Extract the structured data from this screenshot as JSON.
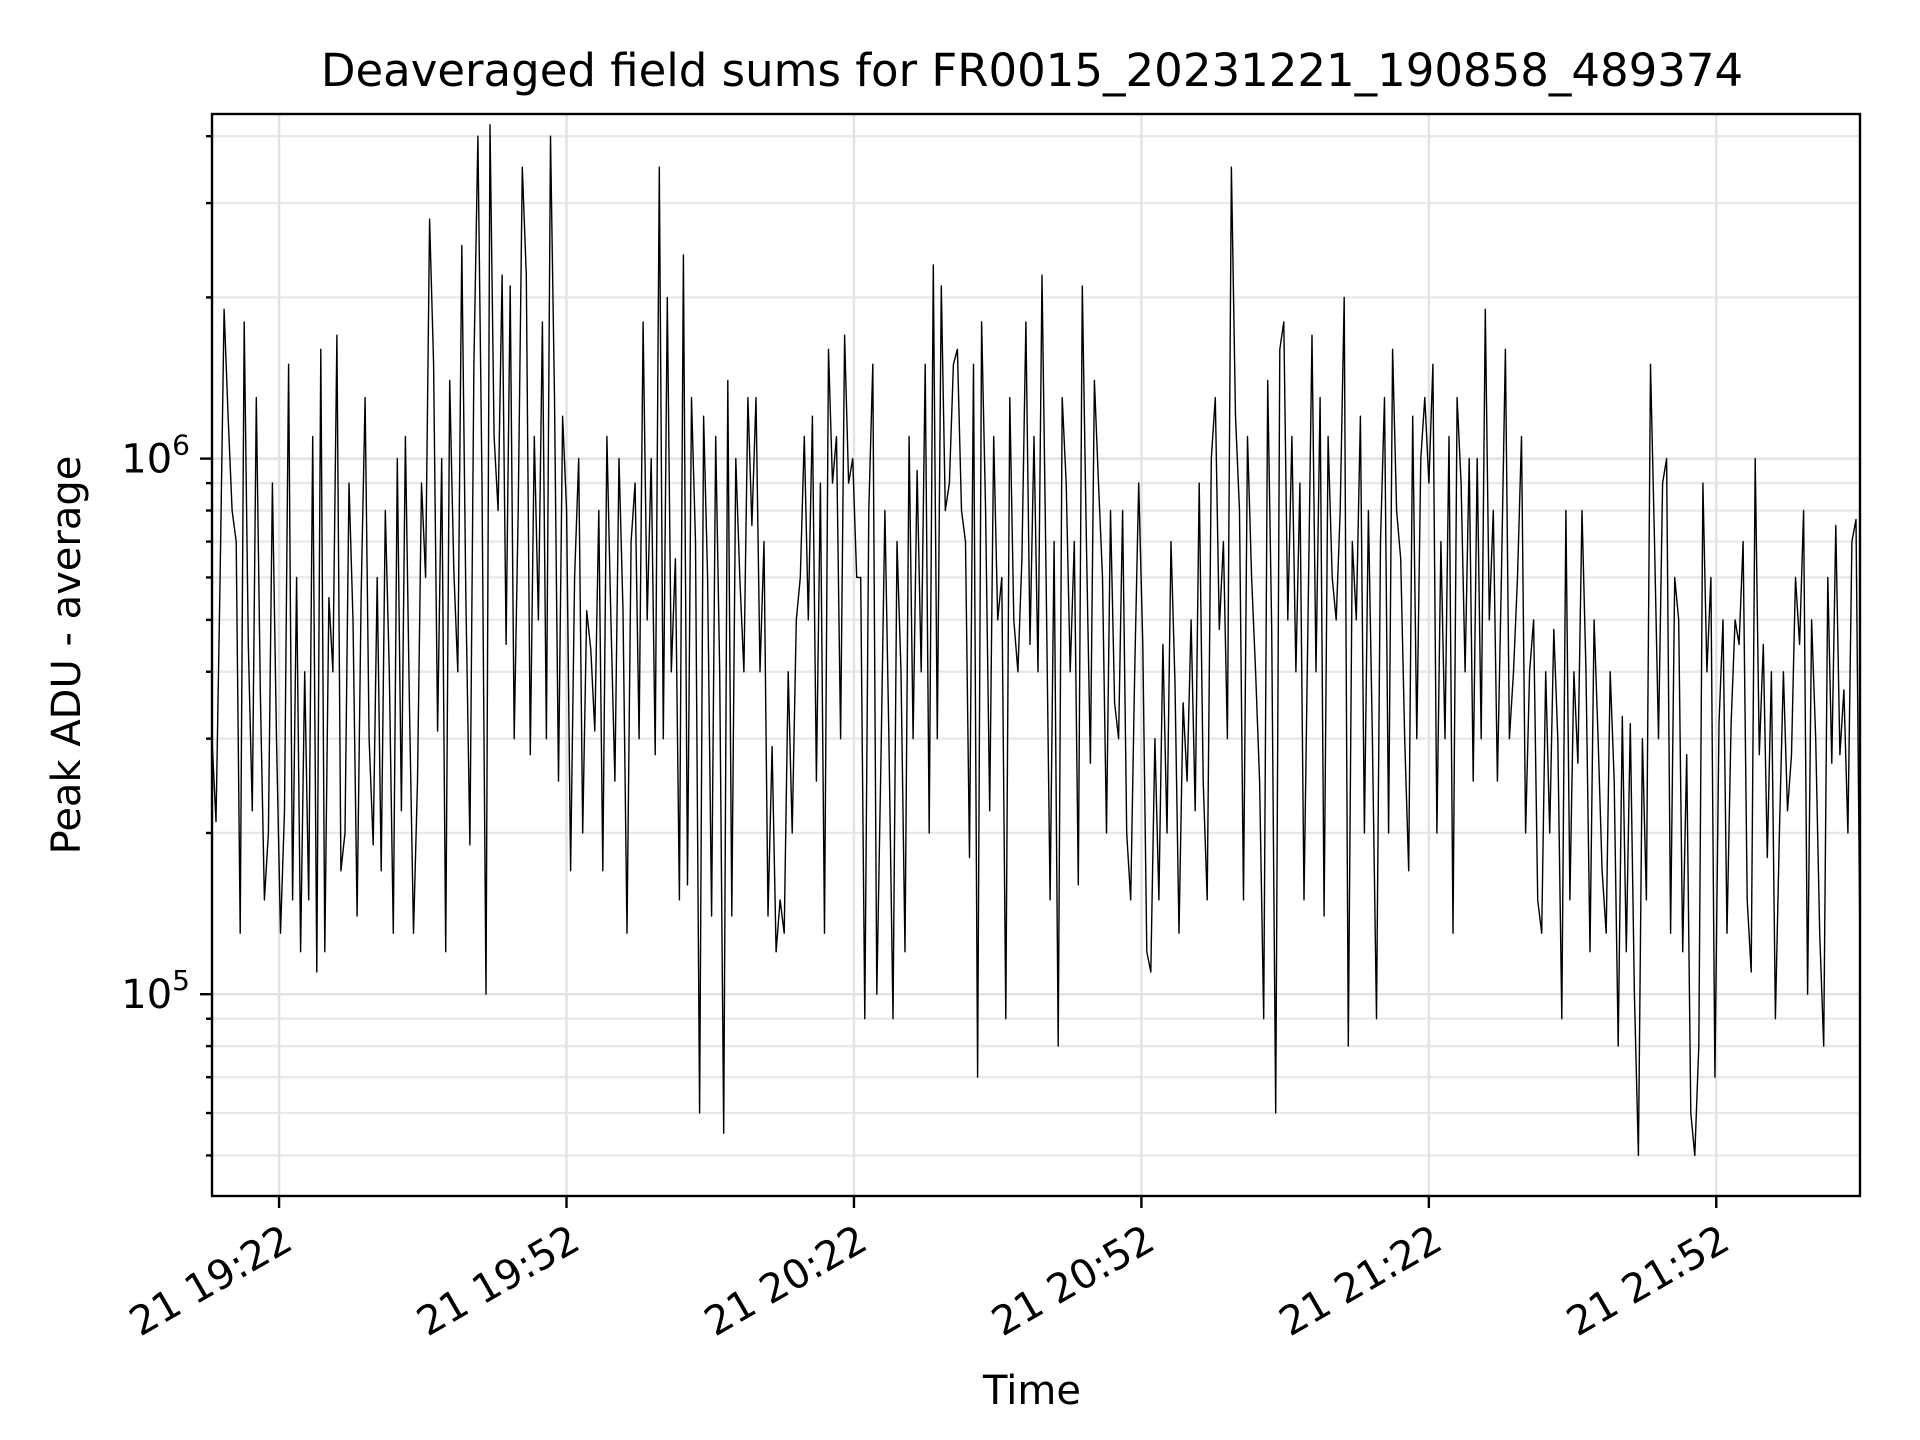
{
  "chart_data": {
    "type": "line",
    "title": "Deaveraged field sums for FR0015_20231221_190858_489374",
    "xlabel": "Time",
    "ylabel": "Peak ADU - average",
    "yscale": "log",
    "ylim": [
      42000,
      4400000
    ],
    "xlim": [
      "2023-12-21 19:15:00",
      "2023-12-21 22:07:00"
    ],
    "x_tick_labels": [
      "21 19:22",
      "21 19:52",
      "21 20:22",
      "21 20:52",
      "21 21:22",
      "21 21:52"
    ],
    "y_tick_labels": [
      {
        "base": "10",
        "exp": "5",
        "value": 100000
      },
      {
        "base": "10",
        "exp": "6",
        "value": 1000000
      }
    ],
    "grid": true,
    "series": [
      {
        "color": "#000000",
        "x_start": "2023-12-21 19:15:00",
        "x_end": "2023-12-21 22:07:00",
        "values": [
          300000,
          210000,
          600000,
          1900000,
          1200000,
          800000,
          700000,
          130000,
          1800000,
          450000,
          220000,
          1300000,
          360000,
          150000,
          200000,
          900000,
          300000,
          130000,
          220000,
          1500000,
          150000,
          600000,
          120000,
          400000,
          150000,
          1100000,
          110000,
          1600000,
          120000,
          550000,
          400000,
          1700000,
          170000,
          200000,
          900000,
          500000,
          140000,
          550000,
          1300000,
          300000,
          190000,
          600000,
          170000,
          800000,
          400000,
          130000,
          1000000,
          220000,
          1100000,
          350000,
          130000,
          250000,
          900000,
          600000,
          2800000,
          1500000,
          310000,
          1000000,
          120000,
          1400000,
          620000,
          400000,
          2500000,
          560000,
          190000,
          1500000,
          4000000,
          900000,
          100000,
          4200000,
          1100000,
          800000,
          2200000,
          450000,
          2100000,
          300000,
          800000,
          3500000,
          2200000,
          280000,
          1100000,
          500000,
          1800000,
          300000,
          4000000,
          1300000,
          250000,
          1200000,
          800000,
          170000,
          600000,
          1000000,
          200000,
          520000,
          440000,
          310000,
          800000,
          170000,
          1100000,
          500000,
          250000,
          1000000,
          520000,
          130000,
          700000,
          900000,
          300000,
          1800000,
          500000,
          1000000,
          280000,
          3500000,
          300000,
          2000000,
          400000,
          650000,
          150000,
          2400000,
          160000,
          1300000,
          700000,
          60000,
          1200000,
          600000,
          140000,
          1100000,
          400000,
          55000,
          1400000,
          140000,
          1000000,
          600000,
          400000,
          1300000,
          750000,
          1300000,
          400000,
          700000,
          140000,
          290000,
          120000,
          150000,
          130000,
          400000,
          200000,
          500000,
          600000,
          1100000,
          500000,
          1200000,
          250000,
          900000,
          130000,
          1600000,
          900000,
          1100000,
          300000,
          1700000,
          900000,
          1000000,
          600000,
          600000,
          90000,
          800000,
          1500000,
          100000,
          270000,
          800000,
          300000,
          90000,
          700000,
          400000,
          120000,
          1100000,
          300000,
          950000,
          400000,
          1500000,
          200000,
          2300000,
          300000,
          2100000,
          800000,
          900000,
          1500000,
          1600000,
          800000,
          700000,
          180000,
          1500000,
          70000,
          1800000,
          800000,
          220000,
          1100000,
          500000,
          600000,
          90000,
          1300000,
          500000,
          400000,
          650000,
          1800000,
          450000,
          1100000,
          400000,
          2200000,
          600000,
          150000,
          700000,
          80000,
          1300000,
          900000,
          400000,
          700000,
          160000,
          2100000,
          700000,
          270000,
          1400000,
          900000,
          600000,
          200000,
          800000,
          350000,
          300000,
          800000,
          200000,
          150000,
          400000,
          900000,
          450000,
          120000,
          110000,
          300000,
          150000,
          450000,
          200000,
          700000,
          380000,
          130000,
          350000,
          250000,
          500000,
          220000,
          900000,
          250000,
          150000,
          1000000,
          1300000,
          480000,
          700000,
          300000,
          3500000,
          1200000,
          800000,
          150000,
          1100000,
          600000,
          400000,
          250000,
          90000,
          1400000,
          480000,
          60000,
          1600000,
          1800000,
          500000,
          1100000,
          400000,
          900000,
          150000,
          500000,
          1700000,
          400000,
          1300000,
          140000,
          1100000,
          600000,
          500000,
          800000,
          2000000,
          80000,
          700000,
          500000,
          1200000,
          200000,
          800000,
          300000,
          90000,
          700000,
          1300000,
          200000,
          1600000,
          800000,
          650000,
          300000,
          170000,
          1200000,
          300000,
          1000000,
          1300000,
          900000,
          1500000,
          200000,
          700000,
          300000,
          1100000,
          130000,
          1300000,
          900000,
          400000,
          1000000,
          250000,
          1000000,
          300000,
          1900000,
          500000,
          800000,
          250000,
          600000,
          1600000,
          300000,
          400000,
          600000,
          1100000,
          200000,
          400000,
          500000,
          150000,
          130000,
          400000,
          200000,
          480000,
          300000,
          90000,
          800000,
          150000,
          400000,
          270000,
          800000,
          400000,
          120000,
          500000,
          300000,
          170000,
          130000,
          400000,
          250000,
          80000,
          330000,
          120000,
          320000,
          100000,
          50000,
          300000,
          150000,
          1500000,
          700000,
          300000,
          900000,
          1000000,
          130000,
          600000,
          500000,
          120000,
          280000,
          60000,
          50000,
          80000,
          900000,
          400000,
          600000,
          70000,
          320000,
          500000,
          130000,
          320000,
          500000,
          450000,
          700000,
          150000,
          110000,
          1000000,
          280000,
          450000,
          180000,
          400000,
          90000,
          200000,
          400000,
          220000,
          280000,
          600000,
          450000,
          800000,
          100000,
          500000,
          300000,
          130000,
          80000,
          600000,
          270000,
          750000,
          280000,
          370000,
          200000,
          700000,
          770000,
          120000
        ]
      }
    ]
  }
}
